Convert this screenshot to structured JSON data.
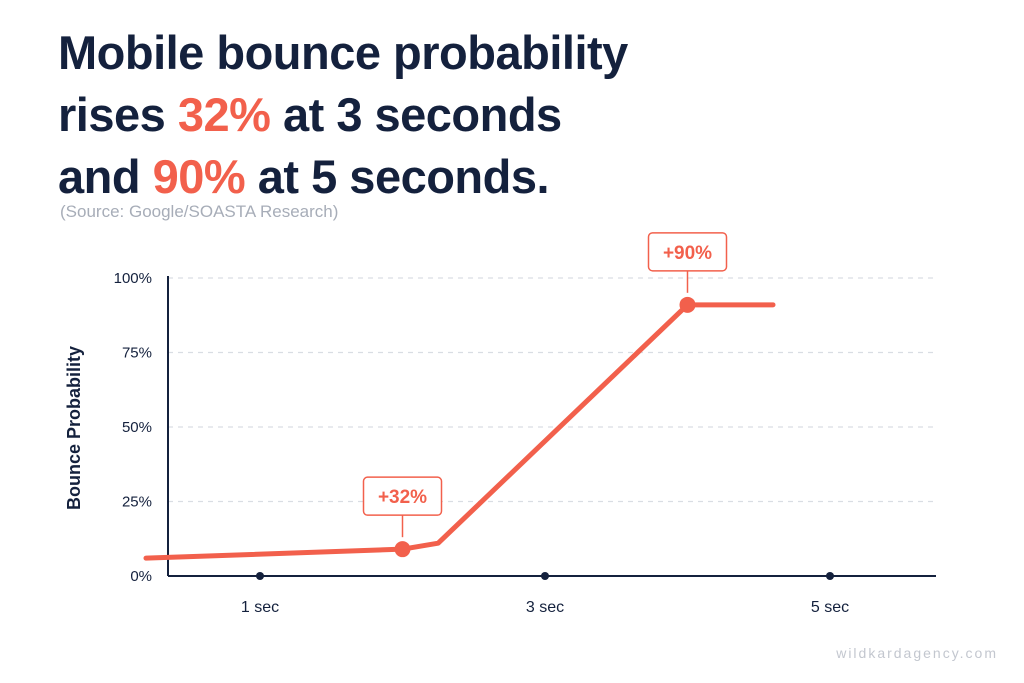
{
  "title": {
    "line1": "Mobile bounce probability",
    "line2_pre": "rises ",
    "line2_hl": "32%",
    "line2_post": " at 3 seconds",
    "line3_pre": "and ",
    "line3_hl": "90%",
    "line3_post": " at 5 seconds."
  },
  "source": "(Source: Google/SOASTA Research)",
  "watermark": "wildkardagency.com",
  "colors": {
    "accent": "#f2604c",
    "text": "#14213d",
    "muted": "#a7adb8",
    "grid": "#d9dde3"
  },
  "chart_data": {
    "type": "line",
    "ylabel": "Bounce Probability",
    "xlabel": "",
    "yticks": [
      "0%",
      "25%",
      "50%",
      "75%",
      "100%"
    ],
    "ylim": [
      0,
      100
    ],
    "grid": "horizontal dashed",
    "categories": [
      "1 sec",
      "3 sec",
      "5 sec"
    ],
    "series": [
      {
        "points": [
          {
            "x": 0.2,
            "y": 6
          },
          {
            "x": 2,
            "y": 9
          },
          {
            "x": 2.25,
            "y": 11
          },
          {
            "x": 4,
            "y": 91
          },
          {
            "x": 4.6,
            "y": 91
          }
        ]
      }
    ],
    "markers": [
      {
        "x": 2,
        "y": 9,
        "label": "+32%"
      },
      {
        "x": 4,
        "y": 91,
        "label": "+90%"
      }
    ]
  }
}
